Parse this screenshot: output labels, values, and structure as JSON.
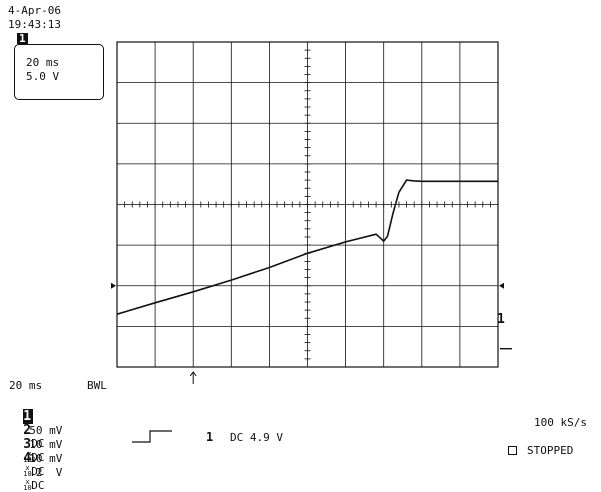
{
  "header": {
    "date": "4-Apr-06",
    "time": "19:43:13"
  },
  "trace_box": {
    "channel_label": "1",
    "timebase": "20 ms",
    "volts": "5.0 V"
  },
  "marker_label": "1",
  "bottom": {
    "timebase": "20 ms",
    "bwl": "BWL",
    "channels": [
      {
        "num": "1",
        "scale": "50 mV",
        "coupling": "DC",
        "probe": "100"
      },
      {
        "num": "2",
        "scale": "10 mV",
        "coupling": "DC",
        "probe": "10"
      },
      {
        "num": "3",
        "scale": "10 mV",
        "coupling": "DC",
        "probe": "10"
      },
      {
        "num": "4",
        "scale": ".2  V",
        "coupling": "DC",
        "probe": ""
      }
    ],
    "trigger": {
      "channel": "1",
      "coupling_level": "DC 4.9 V"
    },
    "sample_rate": "100 kS/s",
    "status": "STOPPED"
  },
  "chart_data": {
    "type": "line",
    "x_unit": "div",
    "y_unit": "div",
    "xlim": [
      0,
      10
    ],
    "ylim": [
      -4,
      4
    ],
    "grid": true,
    "series": [
      {
        "x": [
          0,
          1,
          2,
          3,
          4,
          5,
          6,
          6.8,
          7.0,
          7.1,
          7.25,
          7.4,
          7.6,
          7.8,
          8.0,
          10
        ],
        "y": [
          -2.7,
          -2.42,
          -2.15,
          -1.86,
          -1.55,
          -1.2,
          -0.92,
          -0.73,
          -0.9,
          -0.78,
          -0.2,
          0.3,
          0.6,
          0.58,
          0.57,
          0.57
        ]
      }
    ]
  }
}
